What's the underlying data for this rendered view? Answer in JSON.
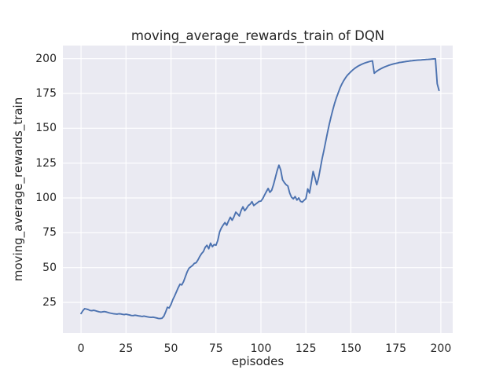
{
  "chart_data": {
    "type": "line",
    "title": "moving_average_rewards_train of DQN",
    "xlabel": "episodes",
    "ylabel": "moving_average_rewards_train",
    "xticks": [
      0,
      25,
      50,
      75,
      100,
      125,
      150,
      175,
      200
    ],
    "yticks": [
      25,
      50,
      75,
      100,
      125,
      150,
      175,
      200
    ],
    "xlim": [
      -10.1,
      206.6
    ],
    "ylim": [
      3.0,
      209.4
    ],
    "grid": true,
    "legend": "none",
    "series": [
      {
        "name": "DQN moving average reward (train)",
        "x_start": 0,
        "x_step": 1,
        "values": [
          17.0,
          19.0,
          20.5,
          20.2,
          19.8,
          19.2,
          19.0,
          19.3,
          19.0,
          18.6,
          18.3,
          18.0,
          18.2,
          18.4,
          18.1,
          17.7,
          17.4,
          17.1,
          16.9,
          16.7,
          16.6,
          16.8,
          16.7,
          16.4,
          16.2,
          16.5,
          16.2,
          15.9,
          15.6,
          15.5,
          15.8,
          15.6,
          15.3,
          15.1,
          14.9,
          15.2,
          14.9,
          14.6,
          14.4,
          14.2,
          14.4,
          14.1,
          13.8,
          13.5,
          13.4,
          13.6,
          15.0,
          18.0,
          21.5,
          21.0,
          23.5,
          27.0,
          29.5,
          32.5,
          35.5,
          38.0,
          37.5,
          40.0,
          43.5,
          47.0,
          49.5,
          50.5,
          51.5,
          53.0,
          53.5,
          55.5,
          58.0,
          60.0,
          61.5,
          64.5,
          66.0,
          63.5,
          67.5,
          65.0,
          66.5,
          66.0,
          69.5,
          75.5,
          78.5,
          80.5,
          82.3,
          80.4,
          83.5,
          86.1,
          84.0,
          86.5,
          89.8,
          88.5,
          87.0,
          91.0,
          93.6,
          90.8,
          92.5,
          94.5,
          95.5,
          97.3,
          94.5,
          95.5,
          96.5,
          97.5,
          97.7,
          99.5,
          102.1,
          104.5,
          106.8,
          104.0,
          105.5,
          109.5,
          114.5,
          119.5,
          123.5,
          120.0,
          113.0,
          111.0,
          109.5,
          108.5,
          103.5,
          100.5,
          99.3,
          101.0,
          98.5,
          100.0,
          97.5,
          97.0,
          98.3,
          99.5,
          106.5,
          103.5,
          111.0,
          119.0,
          114.5,
          109.5,
          114.0,
          121.0,
          128.0,
          134.0,
          140.5,
          147.0,
          153.0,
          158.5,
          163.5,
          168.0,
          172.0,
          175.5,
          179.0,
          181.8,
          184.2,
          186.2,
          188.0,
          189.3,
          190.6,
          191.8,
          192.9,
          193.8,
          194.6,
          195.3,
          195.9,
          196.5,
          197.0,
          197.4,
          197.8,
          198.1,
          198.4,
          189.5,
          190.6,
          191.5,
          192.3,
          193.0,
          193.6,
          194.2,
          194.7,
          195.2,
          195.6,
          196.0,
          196.3,
          196.6,
          196.9,
          197.2,
          197.4,
          197.6,
          197.8,
          198.0,
          198.2,
          198.4,
          198.5,
          198.7,
          198.8,
          198.9,
          199.0,
          199.1,
          199.2,
          199.3,
          199.4,
          199.5,
          199.6,
          199.7,
          199.8,
          199.9,
          182.0,
          177.2
        ]
      }
    ],
    "colors": {
      "line": "#4c72b0",
      "plot_background": "#eaeaf2",
      "grid": "#ffffff",
      "text": "#262626",
      "figure_background": "#ffffff"
    }
  }
}
